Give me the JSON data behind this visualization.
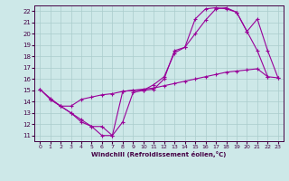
{
  "xlabel": "Windchill (Refroidissement éolien,°C)",
  "bg_color": "#cde8e8",
  "grid_color": "#aacccc",
  "line_color": "#990099",
  "xlim": [
    -0.5,
    23.5
  ],
  "ylim": [
    10.5,
    22.5
  ],
  "xticks": [
    0,
    1,
    2,
    3,
    4,
    5,
    6,
    7,
    8,
    9,
    10,
    11,
    12,
    13,
    14,
    15,
    16,
    17,
    18,
    19,
    20,
    21,
    22,
    23
  ],
  "yticks": [
    11,
    12,
    13,
    14,
    15,
    16,
    17,
    18,
    19,
    20,
    21,
    22
  ],
  "line1_x": [
    0,
    1,
    2,
    3,
    4,
    5,
    6,
    7,
    8,
    9,
    10,
    11,
    12,
    13,
    14,
    15,
    16,
    17,
    18,
    19,
    20,
    21,
    22
  ],
  "line1_y": [
    15.1,
    14.3,
    13.6,
    13.0,
    12.2,
    11.8,
    11.0,
    11.0,
    14.9,
    15.0,
    15.0,
    15.1,
    16.0,
    18.5,
    18.8,
    20.0,
    21.2,
    22.2,
    22.3,
    21.9,
    20.2,
    18.5,
    16.2
  ],
  "line2_x": [
    0,
    1,
    2,
    3,
    4,
    5,
    6,
    7,
    8,
    9,
    10,
    11,
    12,
    13,
    14,
    15,
    16,
    17,
    18,
    19,
    20,
    21,
    22,
    23
  ],
  "line2_y": [
    15.1,
    14.2,
    13.6,
    13.6,
    14.2,
    14.4,
    14.6,
    14.7,
    14.9,
    15.0,
    15.1,
    15.2,
    15.4,
    15.6,
    15.8,
    16.0,
    16.2,
    16.4,
    16.6,
    16.7,
    16.8,
    16.9,
    16.2,
    16.1
  ],
  "line3_x": [
    1,
    2,
    3,
    4,
    5,
    6,
    7,
    8,
    9,
    10,
    11,
    12,
    13,
    14,
    15,
    16,
    17,
    18,
    19,
    20,
    21,
    22,
    23
  ],
  "line3_y": [
    14.2,
    13.6,
    13.0,
    12.4,
    11.8,
    11.8,
    11.0,
    12.2,
    14.8,
    15.0,
    15.5,
    16.2,
    18.3,
    18.8,
    21.3,
    22.2,
    22.3,
    22.2,
    21.9,
    20.2,
    21.3,
    18.5,
    16.1
  ]
}
